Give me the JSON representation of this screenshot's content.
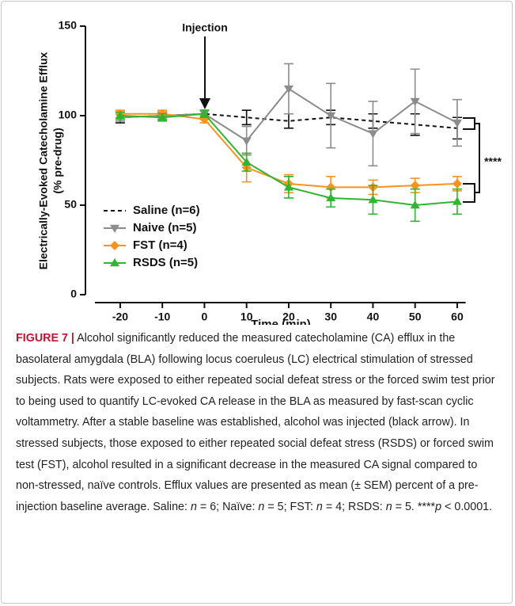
{
  "chart_data": {
    "type": "line",
    "y_label": [
      "Electrically-Evoked Catecholamine Efflux",
      "(% pre-drug)"
    ],
    "x_label": "Time (min)",
    "x": [
      -20,
      -10,
      0,
      10,
      20,
      30,
      40,
      50,
      60
    ],
    "xlim": [
      -26,
      62
    ],
    "xticks": [
      -20,
      -10,
      0,
      10,
      20,
      30,
      40,
      50,
      60
    ],
    "ylim": [
      0,
      150
    ],
    "yticks": [
      0,
      50,
      100,
      150
    ],
    "series": [
      {
        "name": "Saline (n=6)",
        "color": "#111111",
        "dash": true,
        "marker": "none",
        "values": [
          99,
          100,
          101,
          99,
          97,
          99,
          97,
          95,
          93
        ],
        "errors": [
          3,
          2,
          2,
          4,
          4,
          4,
          4,
          6,
          6
        ]
      },
      {
        "name": "Naive (n=5)",
        "color": "#8c8c8c",
        "dash": false,
        "marker": "down-triangle",
        "values": [
          99,
          100,
          101,
          86,
          115,
          100,
          90,
          108,
          96
        ],
        "errors": [
          2,
          2,
          2,
          8,
          14,
          18,
          18,
          18,
          13
        ]
      },
      {
        "name": "FST (n=4)",
        "color": "#f7931e",
        "dash": false,
        "marker": "diamond",
        "values": [
          101,
          101,
          98,
          71,
          62,
          60,
          60,
          61,
          62
        ],
        "errors": [
          2,
          2,
          2,
          8,
          5,
          6,
          4,
          4,
          4
        ]
      },
      {
        "name": "RSDS (n=5)",
        "color": "#2fb52f",
        "dash": false,
        "marker": "up-triangle",
        "values": [
          100,
          99,
          101,
          74,
          60,
          54,
          53,
          50,
          52
        ],
        "errors": [
          2,
          2,
          2,
          5,
          6,
          5,
          8,
          9,
          7
        ]
      }
    ],
    "annotations": [
      "Injection",
      "****"
    ]
  },
  "caption": {
    "label": "FIGURE 7 |",
    "parts": [
      {
        "text": "Alcohol significantly reduced the measured catecholamine (CA) efflux in the basolateral amygdala (BLA) following locus coeruleus (LC) electrical stimulation of stressed subjects. Rats were exposed to either repeated social defeat stress or the forced swim test prior to being used to quantify LC-evoked CA release in the BLA as measured by fast-scan cyclic voltammetry. After a stable baseline was established, alcohol was injected (black arrow). In stressed subjects, those exposed to either repeated social defeat stress (RSDS) or forced swim test (FST), alcohol resulted in a significant decrease in the measured CA signal compared to non-stressed, naïve controls. Efflux values are presented as mean (± SEM) percent of a pre-injection baseline average. Saline: ",
        "italic": false
      },
      {
        "text": "n",
        "italic": true
      },
      {
        "text": " = 6; Naïve: ",
        "italic": false
      },
      {
        "text": "n",
        "italic": true
      },
      {
        "text": " = 5; FST: ",
        "italic": false
      },
      {
        "text": "n",
        "italic": true
      },
      {
        "text": " = 4; RSDS: ",
        "italic": false
      },
      {
        "text": "n",
        "italic": true
      },
      {
        "text": " = 5. ****",
        "italic": false
      },
      {
        "text": "p",
        "italic": true
      },
      {
        "text": " < 0.0001.",
        "italic": false
      }
    ]
  }
}
